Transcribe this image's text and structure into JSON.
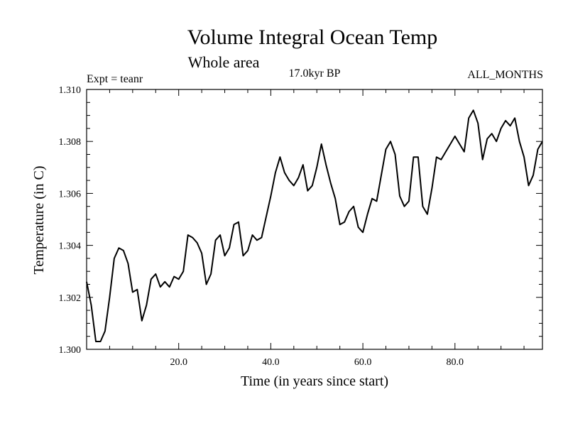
{
  "chart_data": {
    "type": "line",
    "title": "Volume Integral Ocean Temp",
    "subtitle": "Whole area",
    "annotations": {
      "left": "Expt = teanr",
      "center": "17.0kyr BP",
      "right": "ALL_MONTHS"
    },
    "xlabel": "Time (in years since start)",
    "ylabel": "Temperature (in C)",
    "xlim": [
      0,
      99
    ],
    "ylim": [
      1.3,
      1.31
    ],
    "x_ticks": [
      {
        "value": 20,
        "label": "20.0"
      },
      {
        "value": 40,
        "label": "40.0"
      },
      {
        "value": 60,
        "label": "60.0"
      },
      {
        "value": 80,
        "label": "80.0"
      }
    ],
    "y_ticks": [
      {
        "value": 1.3,
        "label": "1.300"
      },
      {
        "value": 1.302,
        "label": "1.302"
      },
      {
        "value": 1.304,
        "label": "1.304"
      },
      {
        "value": 1.306,
        "label": "1.306"
      },
      {
        "value": 1.308,
        "label": "1.308"
      },
      {
        "value": 1.31,
        "label": "1.310"
      }
    ],
    "x_minor_step": 5,
    "y_minor_step": 0.0005,
    "grid": false,
    "series": [
      {
        "name": "Temperature",
        "color": "#000000",
        "x": [
          0,
          1,
          2,
          3,
          4,
          5,
          6,
          7,
          8,
          9,
          10,
          11,
          12,
          13,
          14,
          15,
          16,
          17,
          18,
          19,
          20,
          21,
          22,
          23,
          24,
          25,
          26,
          27,
          28,
          29,
          30,
          31,
          32,
          33,
          34,
          35,
          36,
          37,
          38,
          39,
          40,
          41,
          42,
          43,
          44,
          45,
          46,
          47,
          48,
          49,
          50,
          51,
          52,
          53,
          54,
          55,
          56,
          57,
          58,
          59,
          60,
          61,
          62,
          63,
          64,
          65,
          66,
          67,
          68,
          69,
          70,
          71,
          72,
          73,
          74,
          75,
          76,
          77,
          78,
          79,
          80,
          81,
          82,
          83,
          84,
          85,
          86,
          87,
          88,
          89,
          90,
          91,
          92,
          93,
          94,
          95,
          96,
          97,
          98,
          99
        ],
        "values": [
          1.3026,
          1.3017,
          1.3003,
          1.3003,
          1.3007,
          1.302,
          1.3035,
          1.3039,
          1.3038,
          1.3033,
          1.3022,
          1.3023,
          1.3011,
          1.3017,
          1.3027,
          1.3029,
          1.3024,
          1.3026,
          1.3024,
          1.3028,
          1.3027,
          1.303,
          1.3044,
          1.3043,
          1.3041,
          1.3037,
          1.3025,
          1.3029,
          1.3042,
          1.3044,
          1.3036,
          1.3039,
          1.3048,
          1.3049,
          1.3036,
          1.3038,
          1.3044,
          1.3042,
          1.3043,
          1.3051,
          1.3059,
          1.3068,
          1.3074,
          1.3068,
          1.3065,
          1.3063,
          1.3066,
          1.3071,
          1.3061,
          1.3063,
          1.307,
          1.3079,
          1.3071,
          1.3064,
          1.3058,
          1.3048,
          1.3049,
          1.3053,
          1.3055,
          1.3047,
          1.3045,
          1.3052,
          1.3058,
          1.3057,
          1.3067,
          1.3077,
          1.308,
          1.3075,
          1.3059,
          1.3055,
          1.3057,
          1.3074,
          1.3074,
          1.3055,
          1.3052,
          1.3062,
          1.3074,
          1.3073,
          1.3076,
          1.3079,
          1.3082,
          1.3079,
          1.3076,
          1.3089,
          1.3092,
          1.3087,
          1.3073,
          1.3081,
          1.3083,
          1.308,
          1.3085,
          1.3088,
          1.3086,
          1.3089,
          1.308,
          1.3074,
          1.3063,
          1.3067,
          1.3077,
          1.308
        ]
      }
    ]
  }
}
